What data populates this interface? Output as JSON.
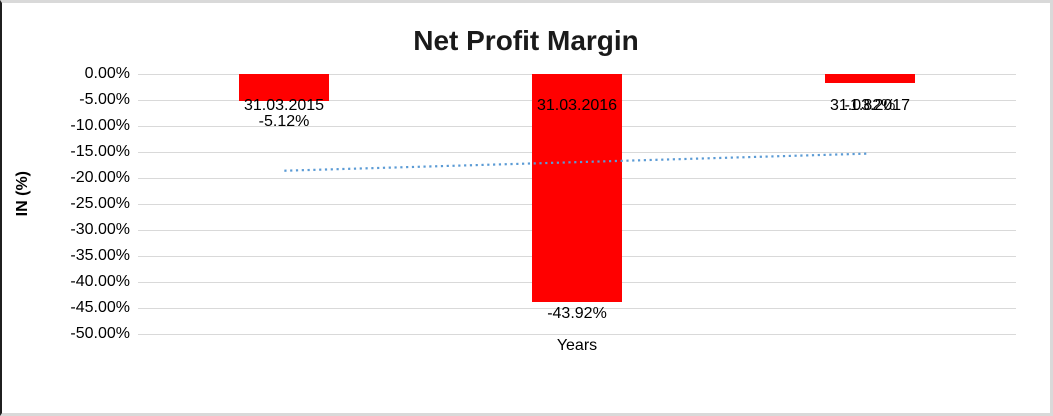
{
  "chart_data": {
    "type": "bar",
    "title": "Net Profit Margin",
    "xlabel": "Years",
    "ylabel": "IN (%)",
    "categories": [
      "31.03.2015",
      "31.03.2016",
      "31.03.2017"
    ],
    "series": [
      {
        "name": "Net Profit Margin",
        "values": [
          -5.12,
          -43.92,
          -1.82
        ]
      }
    ],
    "data_labels": [
      "-5.12%",
      "-43.92%",
      "-1.82%"
    ],
    "y_ticks": [
      0,
      -5,
      -10,
      -15,
      -20,
      -25,
      -30,
      -35,
      -40,
      -45,
      -50
    ],
    "y_tick_labels": [
      "0.00%",
      "-5.00%",
      "-10.00%",
      "-15.00%",
      "-20.00%",
      "-25.00%",
      "-30.00%",
      "-35.00%",
      "-40.00%",
      "-45.00%",
      "-50.00%"
    ],
    "ylim": [
      -50,
      0
    ],
    "grid": true,
    "legend": "none",
    "bar_color": "#ff0000",
    "gridline_color": "#d9d9d9",
    "trendline": {
      "type": "linear",
      "style": "dotted",
      "color": "#5b9bd5",
      "y_start": -18.6,
      "y_end": -15.3
    }
  }
}
